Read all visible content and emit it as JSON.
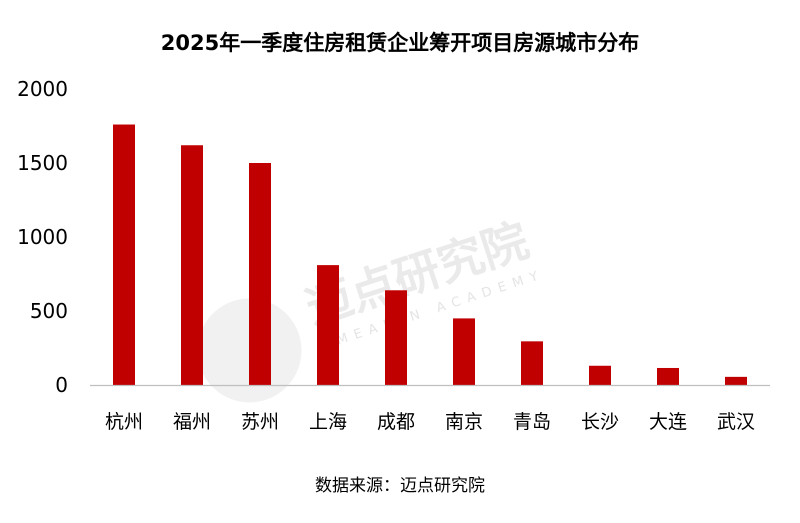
{
  "source": "数据来源：迈点研究院",
  "watermark": {
    "text": "迈点研究院",
    "subtext": "MEADIN ACADEMY"
  },
  "chart_data": {
    "type": "bar",
    "title": "2025年一季度住房租赁企业筹开项目房源城市分布",
    "xlabel": "",
    "ylabel": "",
    "categories": [
      "杭州",
      "福州",
      "苏州",
      "上海",
      "成都",
      "南京",
      "青岛",
      "长沙",
      "大连",
      "武汉"
    ],
    "values": [
      1760,
      1620,
      1500,
      810,
      640,
      450,
      295,
      130,
      115,
      55
    ],
    "ylim": [
      0,
      2000
    ],
    "yticks": [
      0,
      500,
      1000,
      1500,
      2000
    ],
    "grid": false,
    "legend": "none",
    "bar_color": "#c00000",
    "axis_color": "#bfbfbf"
  }
}
